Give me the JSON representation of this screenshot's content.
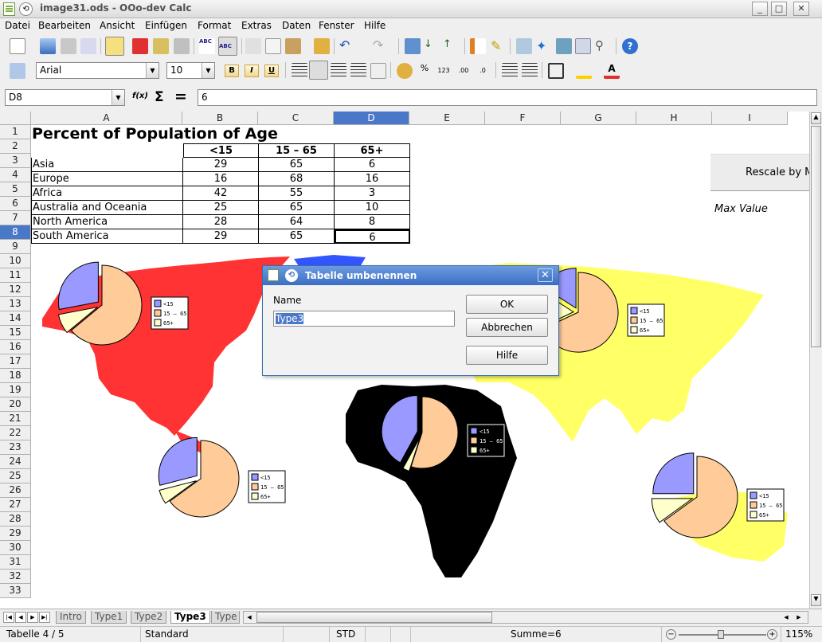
{
  "window": {
    "title": "image31.ods - OOo-dev Calc",
    "min": "_",
    "max": "□",
    "close": "✕"
  },
  "menu": [
    "Datei",
    "Bearbeiten",
    "Ansicht",
    "Einfügen",
    "Format",
    "Extras",
    "Daten",
    "Fenster",
    "Hilfe"
  ],
  "format": {
    "font": "Arial",
    "size": "10",
    "bold": "B",
    "italic": "I",
    "underline": "U"
  },
  "formula": {
    "cellref": "D8",
    "content": "6",
    "fx": "f(x)",
    "sigma": "Σ",
    "eq": "="
  },
  "columns": [
    "A",
    "B",
    "C",
    "D",
    "E",
    "F",
    "G",
    "H",
    "I"
  ],
  "rows": [
    "1",
    "2",
    "3",
    "4",
    "5",
    "6",
    "7",
    "8",
    "9",
    "10",
    "11",
    "12",
    "13",
    "14",
    "15",
    "16",
    "17",
    "18",
    "19",
    "20",
    "21",
    "22",
    "23",
    "24",
    "25",
    "26",
    "27",
    "28",
    "29",
    "30",
    "31",
    "32",
    "33"
  ],
  "sheet": {
    "title": "Percent of Population of Age",
    "headers": [
      "<15",
      "15 – 65",
      "65+"
    ],
    "data": [
      {
        "region": "Asia",
        "a": "29",
        "b": "65",
        "c": "6"
      },
      {
        "region": "Europe",
        "a": "16",
        "b": "68",
        "c": "16"
      },
      {
        "region": "Africa",
        "a": "42",
        "b": "55",
        "c": "3"
      },
      {
        "region": "Australia and Oceania",
        "a": "25",
        "b": "65",
        "c": "10"
      },
      {
        "region": "North America",
        "a": "28",
        "b": "64",
        "c": "8"
      },
      {
        "region": "South America",
        "a": "29",
        "b": "65",
        "c": "6"
      }
    ],
    "rescale_label": "Rescale by M",
    "max_value_label": "Max Value"
  },
  "pies": [
    {
      "name": "north-america",
      "values": [
        28,
        64,
        8
      ]
    },
    {
      "name": "europe",
      "values": [
        16,
        68,
        16
      ]
    },
    {
      "name": "africa",
      "values": [
        42,
        55,
        3
      ]
    },
    {
      "name": "south-america",
      "values": [
        29,
        65,
        6
      ]
    },
    {
      "name": "australia",
      "values": [
        25,
        65,
        10
      ]
    }
  ],
  "legend": [
    "<15",
    "15 – 65",
    "65+"
  ],
  "colors": {
    "lt15": "#9999ff",
    "mid": "#ffcc99",
    "gt65": "#ffffcc",
    "namerica": "#ff3333",
    "asia": "#ffff66",
    "africa": "#000000",
    "europe": "#3355ff",
    "selected": "#4a78c8"
  },
  "dialog": {
    "title": "Tabelle umbenennen",
    "name_label": "Name",
    "name_value": "Type3",
    "ok": "OK",
    "cancel": "Abbrechen",
    "help": "Hilfe"
  },
  "tabs": [
    "Intro",
    "Type1",
    "Type2",
    "Type3",
    "Type"
  ],
  "status": {
    "sheet": "Tabelle 4 / 5",
    "style": "Standard",
    "mode": "STD",
    "sum": "Summe=6",
    "zoom": "115%"
  }
}
